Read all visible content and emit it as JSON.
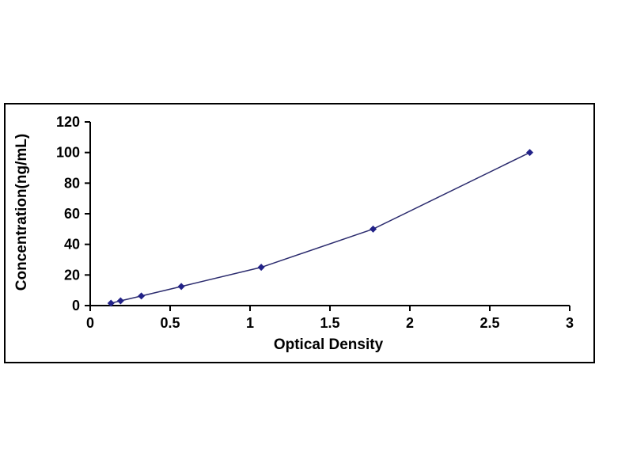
{
  "chart": {
    "xlabel": "Optical Density",
    "ylabel": "Concentration(ng/mL)"
  },
  "chart_data": {
    "type": "line",
    "title": "",
    "xlabel": "Optical Density",
    "ylabel": "Concentration(ng/mL)",
    "x": [
      0.13,
      0.19,
      0.32,
      0.57,
      1.07,
      1.77,
      2.75
    ],
    "y": [
      1.56,
      3.12,
      6.25,
      12.5,
      25,
      50,
      100
    ],
    "xlim": [
      0,
      3
    ],
    "ylim": [
      0,
      120
    ],
    "xtick_labels": [
      "0",
      "0.5",
      "1",
      "1.5",
      "2",
      "2.5",
      "3"
    ],
    "xtick_values": [
      0,
      0.5,
      1,
      1.5,
      2,
      2.5,
      3
    ],
    "ytick_labels": [
      "0",
      "20",
      "40",
      "60",
      "80",
      "100",
      "120"
    ],
    "ytick_values": [
      0,
      20,
      40,
      60,
      80,
      100,
      120
    ],
    "marker": "diamond",
    "grid": false,
    "legend": "none",
    "line_color": "#2b2b6e",
    "marker_color": "#222288",
    "axis_color": "#000000",
    "frame_color": "#000000",
    "background_color": "#ffffff"
  }
}
